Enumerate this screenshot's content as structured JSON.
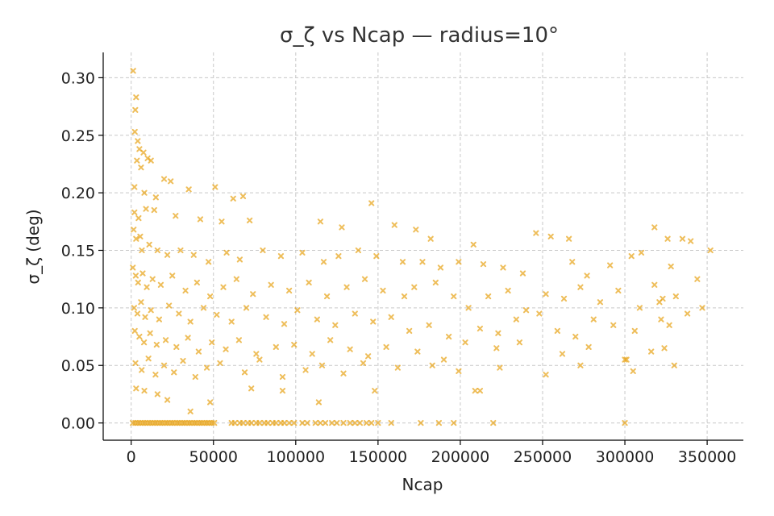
{
  "chart_data": {
    "type": "scatter",
    "title": "σ_ζ vs Ncap — radius=10°",
    "xlabel": "Ncap",
    "ylabel": "σ_ζ (deg)",
    "xlim": [
      -17000,
      372000
    ],
    "ylim": [
      -0.015,
      0.322
    ],
    "xticks": [
      0,
      50000,
      100000,
      150000,
      200000,
      250000,
      300000,
      350000
    ],
    "xtick_labels": [
      "0",
      "50000",
      "100000",
      "150000",
      "200000",
      "250000",
      "300000",
      "350000"
    ],
    "yticks": [
      0.0,
      0.05,
      0.1,
      0.15,
      0.2,
      0.25,
      0.3
    ],
    "ytick_labels": [
      "0.00",
      "0.05",
      "0.10",
      "0.15",
      "0.20",
      "0.25",
      "0.30"
    ],
    "grid": true,
    "marker": "x",
    "color": "#E8A317",
    "point_opacity": 0.7,
    "series": [
      {
        "points": [
          [
            1200,
            0.306
          ],
          [
            2500,
            0.272
          ],
          [
            3000,
            0.283
          ],
          [
            2200,
            0.253
          ],
          [
            4000,
            0.245
          ],
          [
            5000,
            0.238
          ],
          [
            7500,
            0.235
          ],
          [
            3500,
            0.228
          ],
          [
            6000,
            0.222
          ],
          [
            10000,
            0.23
          ],
          [
            12000,
            0.228
          ],
          [
            20000,
            0.212
          ],
          [
            24000,
            0.21
          ],
          [
            2000,
            0.205
          ],
          [
            8000,
            0.2
          ],
          [
            15000,
            0.196
          ],
          [
            35000,
            0.203
          ],
          [
            51000,
            0.205
          ],
          [
            62000,
            0.195
          ],
          [
            68000,
            0.197
          ],
          [
            2000,
            0.183
          ],
          [
            4500,
            0.178
          ],
          [
            9000,
            0.186
          ],
          [
            14000,
            0.185
          ],
          [
            27000,
            0.18
          ],
          [
            42000,
            0.177
          ],
          [
            55000,
            0.175
          ],
          [
            72000,
            0.176
          ],
          [
            115000,
            0.175
          ],
          [
            128000,
            0.17
          ],
          [
            146000,
            0.191
          ],
          [
            160000,
            0.172
          ],
          [
            173000,
            0.168
          ],
          [
            182000,
            0.16
          ],
          [
            208000,
            0.155
          ],
          [
            246000,
            0.165
          ],
          [
            255000,
            0.162
          ],
          [
            266000,
            0.16
          ],
          [
            310000,
            0.148
          ],
          [
            318000,
            0.17
          ],
          [
            326000,
            0.16
          ],
          [
            335000,
            0.16
          ],
          [
            340000,
            0.158
          ],
          [
            352000,
            0.15
          ],
          [
            1500,
            0.168
          ],
          [
            3000,
            0.16
          ],
          [
            5500,
            0.162
          ],
          [
            6500,
            0.15
          ],
          [
            11000,
            0.155
          ],
          [
            16000,
            0.15
          ],
          [
            22000,
            0.146
          ],
          [
            30000,
            0.15
          ],
          [
            38000,
            0.146
          ],
          [
            47000,
            0.14
          ],
          [
            58000,
            0.148
          ],
          [
            66000,
            0.142
          ],
          [
            80000,
            0.15
          ],
          [
            91000,
            0.145
          ],
          [
            104000,
            0.148
          ],
          [
            117000,
            0.14
          ],
          [
            126000,
            0.145
          ],
          [
            138000,
            0.15
          ],
          [
            149000,
            0.145
          ],
          [
            165000,
            0.14
          ],
          [
            177000,
            0.14
          ],
          [
            188000,
            0.135
          ],
          [
            199000,
            0.14
          ],
          [
            214000,
            0.138
          ],
          [
            226000,
            0.135
          ],
          [
            238000,
            0.13
          ],
          [
            268000,
            0.14
          ],
          [
            277000,
            0.128
          ],
          [
            291000,
            0.137
          ],
          [
            304000,
            0.145
          ],
          [
            318000,
            0.12
          ],
          [
            328000,
            0.136
          ],
          [
            344000,
            0.125
          ],
          [
            1000,
            0.135
          ],
          [
            2800,
            0.128
          ],
          [
            4200,
            0.122
          ],
          [
            7000,
            0.13
          ],
          [
            9500,
            0.118
          ],
          [
            13000,
            0.125
          ],
          [
            18000,
            0.12
          ],
          [
            25000,
            0.128
          ],
          [
            33000,
            0.115
          ],
          [
            40000,
            0.122
          ],
          [
            48000,
            0.11
          ],
          [
            56000,
            0.118
          ],
          [
            64000,
            0.125
          ],
          [
            74000,
            0.112
          ],
          [
            85000,
            0.12
          ],
          [
            96000,
            0.115
          ],
          [
            108000,
            0.122
          ],
          [
            119000,
            0.11
          ],
          [
            131000,
            0.118
          ],
          [
            142000,
            0.125
          ],
          [
            153000,
            0.115
          ],
          [
            166000,
            0.11
          ],
          [
            172000,
            0.118
          ],
          [
            185000,
            0.122
          ],
          [
            196000,
            0.11
          ],
          [
            205000,
            0.1
          ],
          [
            217000,
            0.11
          ],
          [
            229000,
            0.115
          ],
          [
            240000,
            0.098
          ],
          [
            252000,
            0.112
          ],
          [
            263000,
            0.108
          ],
          [
            273000,
            0.118
          ],
          [
            285000,
            0.105
          ],
          [
            296000,
            0.115
          ],
          [
            309000,
            0.1
          ],
          [
            321000,
            0.105
          ],
          [
            323000,
            0.108
          ],
          [
            331000,
            0.11
          ],
          [
            347000,
            0.1
          ],
          [
            1800,
            0.1
          ],
          [
            3800,
            0.095
          ],
          [
            6000,
            0.105
          ],
          [
            8500,
            0.092
          ],
          [
            12000,
            0.098
          ],
          [
            17000,
            0.09
          ],
          [
            23000,
            0.102
          ],
          [
            29000,
            0.095
          ],
          [
            36000,
            0.088
          ],
          [
            44000,
            0.1
          ],
          [
            52000,
            0.094
          ],
          [
            61000,
            0.088
          ],
          [
            70000,
            0.1
          ],
          [
            82000,
            0.092
          ],
          [
            93000,
            0.086
          ],
          [
            101000,
            0.098
          ],
          [
            113000,
            0.09
          ],
          [
            124000,
            0.085
          ],
          [
            136000,
            0.095
          ],
          [
            147000,
            0.088
          ],
          [
            158000,
            0.092
          ],
          [
            169000,
            0.08
          ],
          [
            181000,
            0.085
          ],
          [
            193000,
            0.075
          ],
          [
            203000,
            0.07
          ],
          [
            212000,
            0.082
          ],
          [
            223000,
            0.078
          ],
          [
            234000,
            0.09
          ],
          [
            248000,
            0.095
          ],
          [
            259000,
            0.08
          ],
          [
            270000,
            0.075
          ],
          [
            281000,
            0.09
          ],
          [
            293000,
            0.085
          ],
          [
            306000,
            0.08
          ],
          [
            322000,
            0.09
          ],
          [
            327000,
            0.085
          ],
          [
            338000,
            0.095
          ],
          [
            2200,
            0.08
          ],
          [
            5000,
            0.075
          ],
          [
            7800,
            0.07
          ],
          [
            11500,
            0.078
          ],
          [
            15500,
            0.068
          ],
          [
            21000,
            0.072
          ],
          [
            27500,
            0.066
          ],
          [
            34500,
            0.074
          ],
          [
            41000,
            0.062
          ],
          [
            49000,
            0.07
          ],
          [
            57500,
            0.064
          ],
          [
            65500,
            0.072
          ],
          [
            76000,
            0.06
          ],
          [
            88000,
            0.066
          ],
          [
            99000,
            0.068
          ],
          [
            110000,
            0.06
          ],
          [
            121000,
            0.072
          ],
          [
            133000,
            0.064
          ],
          [
            144000,
            0.058
          ],
          [
            155000,
            0.066
          ],
          [
            174000,
            0.062
          ],
          [
            190000,
            0.055
          ],
          [
            222000,
            0.065
          ],
          [
            236000,
            0.07
          ],
          [
            262000,
            0.06
          ],
          [
            278000,
            0.066
          ],
          [
            301000,
            0.055
          ],
          [
            316000,
            0.062
          ],
          [
            324000,
            0.065
          ],
          [
            2600,
            0.052
          ],
          [
            6400,
            0.046
          ],
          [
            10500,
            0.056
          ],
          [
            14800,
            0.042
          ],
          [
            20000,
            0.05
          ],
          [
            26000,
            0.044
          ],
          [
            31500,
            0.054
          ],
          [
            39000,
            0.04
          ],
          [
            46000,
            0.048
          ],
          [
            54000,
            0.052
          ],
          [
            69000,
            0.044
          ],
          [
            78000,
            0.055
          ],
          [
            92000,
            0.04
          ],
          [
            106000,
            0.046
          ],
          [
            116000,
            0.05
          ],
          [
            129000,
            0.043
          ],
          [
            141000,
            0.052
          ],
          [
            162000,
            0.048
          ],
          [
            183000,
            0.05
          ],
          [
            199000,
            0.045
          ],
          [
            224000,
            0.048
          ],
          [
            252000,
            0.042
          ],
          [
            273000,
            0.05
          ],
          [
            300000,
            0.055
          ],
          [
            305000,
            0.045
          ],
          [
            330000,
            0.05
          ],
          [
            3000,
            0.03
          ],
          [
            8000,
            0.028
          ],
          [
            16000,
            0.025
          ],
          [
            22000,
            0.02
          ],
          [
            36000,
            0.01
          ],
          [
            48000,
            0.018
          ],
          [
            73000,
            0.03
          ],
          [
            92000,
            0.028
          ],
          [
            114000,
            0.018
          ],
          [
            148000,
            0.028
          ],
          [
            209000,
            0.028
          ],
          [
            212000,
            0.028
          ],
          [
            1000,
            0.0
          ],
          [
            2500,
            0.0
          ],
          [
            4000,
            0.0
          ],
          [
            5500,
            0.0
          ],
          [
            7000,
            0.0
          ],
          [
            8500,
            0.0
          ],
          [
            10000,
            0.0
          ],
          [
            11500,
            0.0
          ],
          [
            13000,
            0.0
          ],
          [
            14500,
            0.0
          ],
          [
            16000,
            0.0
          ],
          [
            17500,
            0.0
          ],
          [
            19000,
            0.0
          ],
          [
            20500,
            0.0
          ],
          [
            22000,
            0.0
          ],
          [
            23500,
            0.0
          ],
          [
            25000,
            0.0
          ],
          [
            26500,
            0.0
          ],
          [
            28000,
            0.0
          ],
          [
            29500,
            0.0
          ],
          [
            31000,
            0.0
          ],
          [
            32500,
            0.0
          ],
          [
            34000,
            0.0
          ],
          [
            35500,
            0.0
          ],
          [
            37000,
            0.0
          ],
          [
            38500,
            0.0
          ],
          [
            40000,
            0.0
          ],
          [
            41500,
            0.0
          ],
          [
            43000,
            0.0
          ],
          [
            44500,
            0.0
          ],
          [
            46000,
            0.0
          ],
          [
            47500,
            0.0
          ],
          [
            49000,
            0.0
          ],
          [
            50500,
            0.0
          ],
          [
            61000,
            0.0
          ],
          [
            63000,
            0.0
          ],
          [
            66000,
            0.0
          ],
          [
            68000,
            0.0
          ],
          [
            71000,
            0.0
          ],
          [
            73000,
            0.0
          ],
          [
            76000,
            0.0
          ],
          [
            78000,
            0.0
          ],
          [
            81000,
            0.0
          ],
          [
            83000,
            0.0
          ],
          [
            86000,
            0.0
          ],
          [
            88000,
            0.0
          ],
          [
            91000,
            0.0
          ],
          [
            93000,
            0.0
          ],
          [
            96000,
            0.0
          ],
          [
            99000,
            0.0
          ],
          [
            104000,
            0.0
          ],
          [
            107000,
            0.0
          ],
          [
            112000,
            0.0
          ],
          [
            115000,
            0.0
          ],
          [
            118000,
            0.0
          ],
          [
            122000,
            0.0
          ],
          [
            125000,
            0.0
          ],
          [
            129000,
            0.0
          ],
          [
            133000,
            0.0
          ],
          [
            136000,
            0.0
          ],
          [
            139000,
            0.0
          ],
          [
            143000,
            0.0
          ],
          [
            146000,
            0.0
          ],
          [
            150000,
            0.0
          ],
          [
            158000,
            0.0
          ],
          [
            176000,
            0.0
          ],
          [
            187000,
            0.0
          ],
          [
            196000,
            0.0
          ],
          [
            220000,
            0.0
          ],
          [
            300000,
            0.0
          ]
        ]
      }
    ]
  }
}
